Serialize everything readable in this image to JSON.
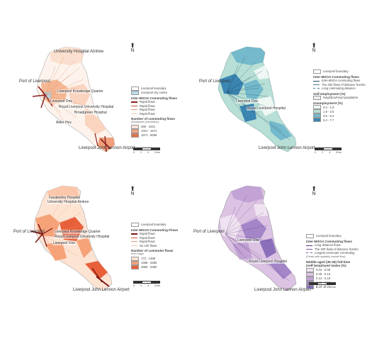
{
  "panels": [
    {
      "id": "a",
      "labels": {
        "top": "University Hospital Aintree",
        "port": "Port of Liverpool",
        "l1": "Liverpool Knowledge Quarter",
        "l2": "Liverpool One",
        "l3": "Royal Liverpool University Hospital",
        "l4": "Broadgreen Hospital",
        "l5": "Alder Hey",
        "airport": "Liverpool John Lennon Airport"
      },
      "legend": {
        "boundary": "Liverpool boundary",
        "city_centre": "Liverpool city centre",
        "flows_title": "Inter-MSOA Commuting flows",
        "flows": [
          "Rapid flows",
          "Rapid flows",
          "Rapid flows",
          "Rapid flows"
        ],
        "count_title": "Number of commuting flows",
        "count_sub": "(Workplace population)",
        "classes": [
          "356 - 1021",
          "1021 - 1571",
          "1571 - 6508"
        ],
        "colors": [
          "#fbe4d8",
          "#f4a582",
          "#e2714a"
        ]
      },
      "scale": [
        "0",
        "2",
        "4",
        "8 km"
      ]
    },
    {
      "id": "b",
      "labels": {
        "port": "Port of Liverpool",
        "l1": "Liverpool One",
        "l2": "Royal Liverpool Hospital",
        "airport": "Liverpool John Lennon Airport"
      },
      "legend": {
        "boundary": "Liverpool boundary",
        "flows_title": "Inter-MSOA Commuting flows",
        "flows": [
          "Inter-MSOA commuting flows",
          "The 200 flows of distance from/to",
          "Long commuting distance"
        ],
        "unemp_title": "Self-employment (%)",
        "unemp_note": "Neighbourhood population",
        "classes_title": "Unemployment (%)",
        "classes": [
          "0.0 - 1.9",
          "1.9 - 3.5",
          "3.5 - 5.2",
          "5.2 - 7.7"
        ],
        "colors": [
          "#eef7f4",
          "#b7dfd6",
          "#74b9cc",
          "#3b86b3"
        ]
      },
      "scale": [
        "0",
        "2",
        "4",
        "8 km"
      ]
    },
    {
      "id": "c",
      "labels": {
        "top1": "Fazakerley Hospital",
        "top2": "University Hospital Aintree",
        "port": "Port of Liverpool",
        "l1": "Liverpool Knowledge Quarter",
        "l2": "Royal Liverpool University Hospital",
        "l3": "Liverpool One",
        "airport": "Liverpool John Lennon Airport"
      },
      "legend": {
        "boundary": "Liverpool boundary",
        "flows_title": "Inter-MSOA Commuting Flows",
        "flows": [
          "Rapid flows",
          "Rapid flows",
          "Rapid flows",
          "No 100 flows"
        ],
        "count_title": "Number of commuter flows",
        "count_sub": "from origin",
        "classes": [
          "172 - 1488",
          "1488 - 2855",
          "2855 - 5382"
        ],
        "colors": [
          "#fde3d2",
          "#f6a37a",
          "#e8603a"
        ]
      },
      "scale": [
        "0",
        "2",
        "4",
        "8 km"
      ]
    },
    {
      "id": "d",
      "labels": {
        "port": "Port of Liverpool",
        "l1": "Liverpool One",
        "l2": "Royal Liverpool Hospital",
        "airport": "Liverpool John Lennon Airport"
      },
      "legend": {
        "boundary": "Liverpool boundary",
        "flows_title": "Inter-MSOA Commuting flows",
        "flows": [
          "Long distance flows",
          "The 200 flows of distance from/to",
          "Longest commuter commuting",
          "(Flows with spatially implicit flow)"
        ],
        "classes_title": "Middle-aged (35-49) full-time (self-)employed males (%)",
        "classes": [
          "0.04 - 0.09",
          "0.09 - 0.13",
          "0.13 - 0.16",
          "0.16 - 0.19",
          "0.19 - 0.22"
        ],
        "colors": [
          "#f0e3f1",
          "#dcc3e3",
          "#c3a3d6",
          "#a385c8",
          "#8a70bb"
        ]
      },
      "scale": [
        "0",
        "2",
        "4",
        "8 km"
      ]
    }
  ],
  "north": "N"
}
